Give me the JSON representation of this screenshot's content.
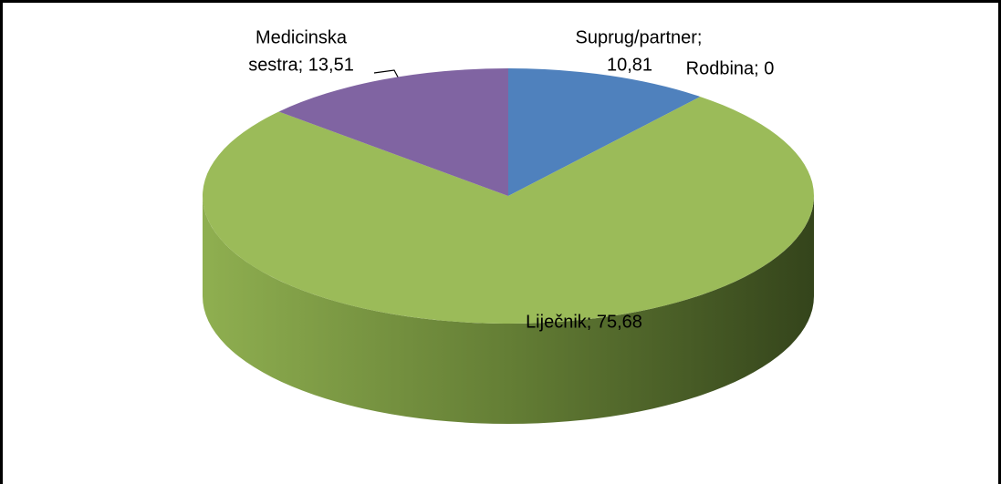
{
  "chart_data": {
    "type": "pie3d",
    "values": [
      10.81,
      0,
      75.68,
      13.51
    ],
    "value_labels": [
      [
        "Suprug/partner;",
        "10,81"
      ],
      [
        "Rodbina; 0"
      ],
      [
        "Liječnik; 75,68"
      ],
      [
        "Medicinska",
        "sestra; 13,51"
      ]
    ],
    "colors": [
      "#4f81bd",
      "#c0504d",
      "#9bbb59",
      "#8064a2"
    ]
  }
}
